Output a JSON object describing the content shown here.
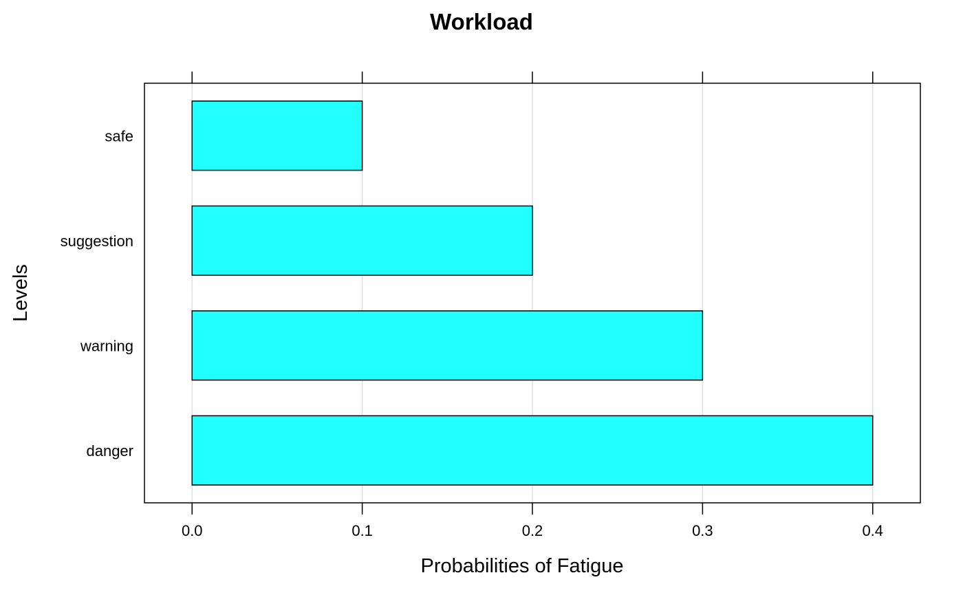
{
  "chart_data": {
    "type": "bar",
    "orientation": "horizontal",
    "title": "Workload",
    "xlabel": "Probabilities of Fatigue",
    "ylabel": "Levels",
    "categories": [
      "safe",
      "suggestion",
      "warning",
      "danger"
    ],
    "values": [
      0.1,
      0.2,
      0.3,
      0.4
    ],
    "xlim": [
      -0.028,
      0.428
    ],
    "xticks": [
      0.0,
      0.1,
      0.2,
      0.3,
      0.4
    ],
    "xtick_labels": [
      "0.0",
      "0.1",
      "0.2",
      "0.3",
      "0.4"
    ],
    "grid": true,
    "bar_color": "#22FFFF",
    "grid_color": "#E0E0E0"
  }
}
